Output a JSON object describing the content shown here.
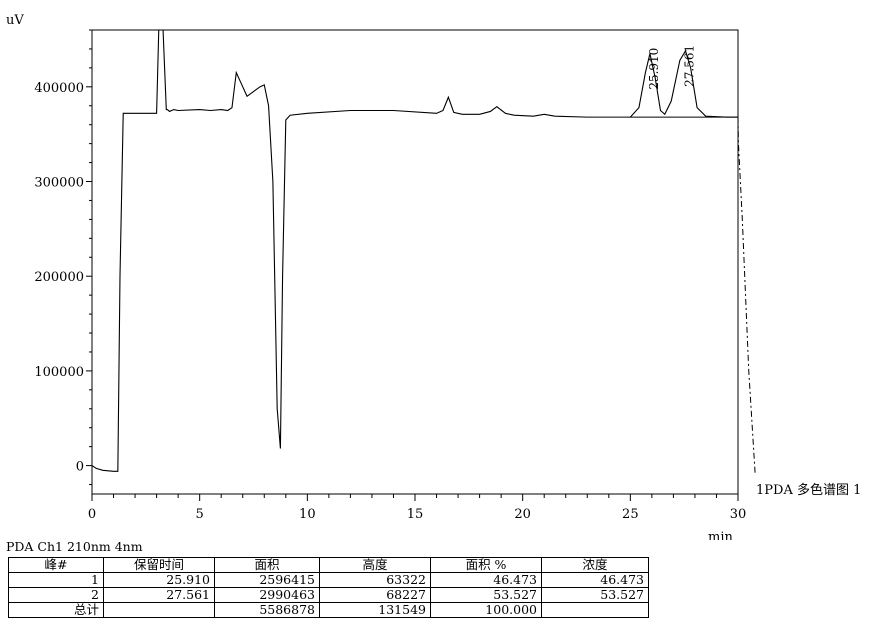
{
  "chart_data": {
    "type": "line",
    "ylabel": "uV",
    "xlabel": "min",
    "xlim": [
      0,
      30
    ],
    "ylim": [
      -30000,
      460000
    ],
    "x_ticks": [
      0,
      5,
      10,
      15,
      20,
      25,
      30
    ],
    "y_ticks": [
      0,
      100000,
      200000,
      300000,
      400000
    ],
    "y_tick_labels": [
      "0",
      "100000",
      "200000",
      "300000",
      "400000"
    ],
    "series": [
      {
        "name": "1PDA 多色谱图 1",
        "x": [
          0,
          0.2,
          0.5,
          1.0,
          1.2,
          1.3,
          1.45,
          1.6,
          3.0,
          3.1,
          3.15,
          3.2,
          3.3,
          3.45,
          3.5,
          3.6,
          3.8,
          4.0,
          5.0,
          5.5,
          6.0,
          6.3,
          6.5,
          6.7,
          6.9,
          7.2,
          7.5,
          7.8,
          8.0,
          8.2,
          8.4,
          8.6,
          8.75,
          8.85,
          9.0,
          9.2,
          10.0,
          12.0,
          14.0,
          16.0,
          16.3,
          16.55,
          16.8,
          17.2,
          18.0,
          18.5,
          18.8,
          19.2,
          19.6,
          20.5,
          21.0,
          21.5,
          23.0,
          25.0,
          25.4,
          25.7,
          25.91,
          26.15,
          26.4,
          26.6,
          26.9,
          27.3,
          27.561,
          27.8,
          28.1,
          28.5,
          29.5,
          30.0,
          30.02,
          30.2,
          30.5,
          30.8
        ],
        "y": [
          0,
          -3000,
          -5000,
          -6000,
          -6000,
          200000,
          372000,
          372000,
          372000,
          460000,
          460000,
          460000,
          460000,
          376000,
          376000,
          374000,
          376000,
          375000,
          376000,
          375000,
          376000,
          375000,
          378000,
          415000,
          405000,
          390000,
          395000,
          400000,
          402000,
          380000,
          300000,
          60000,
          18000,
          200000,
          365000,
          370000,
          372000,
          375000,
          375000,
          372000,
          375000,
          389000,
          373000,
          371000,
          371000,
          374000,
          379000,
          372000,
          370000,
          369000,
          371000,
          369000,
          368000,
          368000,
          378000,
          415000,
          435000,
          410000,
          375000,
          371000,
          385000,
          428000,
          438000,
          420000,
          378000,
          369000,
          368000,
          368000,
          340000,
          260000,
          100000,
          -10000
        ]
      }
    ],
    "baseline": {
      "x": [
        25.0,
        30.0
      ],
      "y": [
        368000,
        368000
      ]
    },
    "peak_labels": [
      {
        "text": "25.910",
        "x": 25.91,
        "y": 435000
      },
      {
        "text": "27.561",
        "x": 27.561,
        "y": 438000
      }
    ],
    "legend": "1PDA 多色谱图 1",
    "legend_position": "right"
  },
  "note": "PDA Ch1 210nm 4nm",
  "table": {
    "headers": [
      "峰#",
      "保留时间",
      "面积",
      "高度",
      "面积 %",
      "浓度"
    ],
    "rows": [
      [
        "1",
        "25.910",
        "2596415",
        "63322",
        "46.473",
        "46.473"
      ],
      [
        "2",
        "27.561",
        "2990463",
        "68227",
        "53.527",
        "53.527"
      ]
    ],
    "total_row": [
      "总计",
      "",
      "5586878",
      "131549",
      "100.000",
      ""
    ]
  }
}
